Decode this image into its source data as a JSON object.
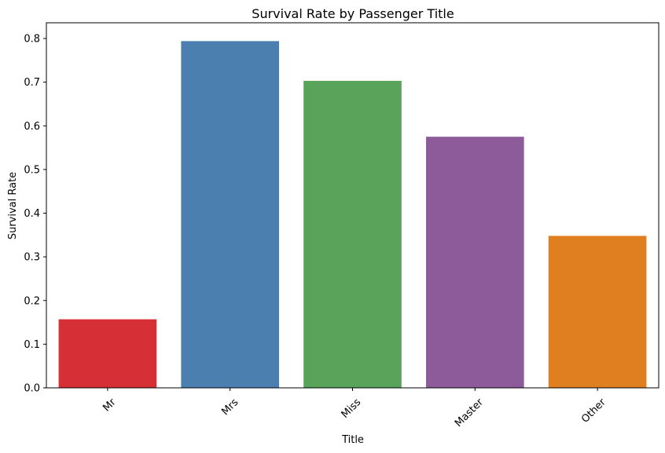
{
  "chart_data": {
    "type": "bar",
    "title": "Survival Rate by Passenger Title",
    "xlabel": "Title",
    "ylabel": "Survival Rate",
    "categories": [
      "Mr",
      "Mrs",
      "Miss",
      "Master",
      "Other"
    ],
    "values": [
      0.157,
      0.794,
      0.703,
      0.575,
      0.348
    ],
    "colors": [
      "#d62f35",
      "#4a7fb0",
      "#59a45a",
      "#8e5b9a",
      "#e07f1f"
    ],
    "ylim": [
      0,
      0.836
    ],
    "yticks": [
      0.0,
      0.1,
      0.2,
      0.3,
      0.4,
      0.5,
      0.6,
      0.7,
      0.8
    ],
    "ytick_labels": [
      "0.0",
      "0.1",
      "0.2",
      "0.3",
      "0.4",
      "0.5",
      "0.6",
      "0.7",
      "0.8"
    ],
    "xtick_rotation_deg": -45,
    "grid": false,
    "legend": "none"
  }
}
